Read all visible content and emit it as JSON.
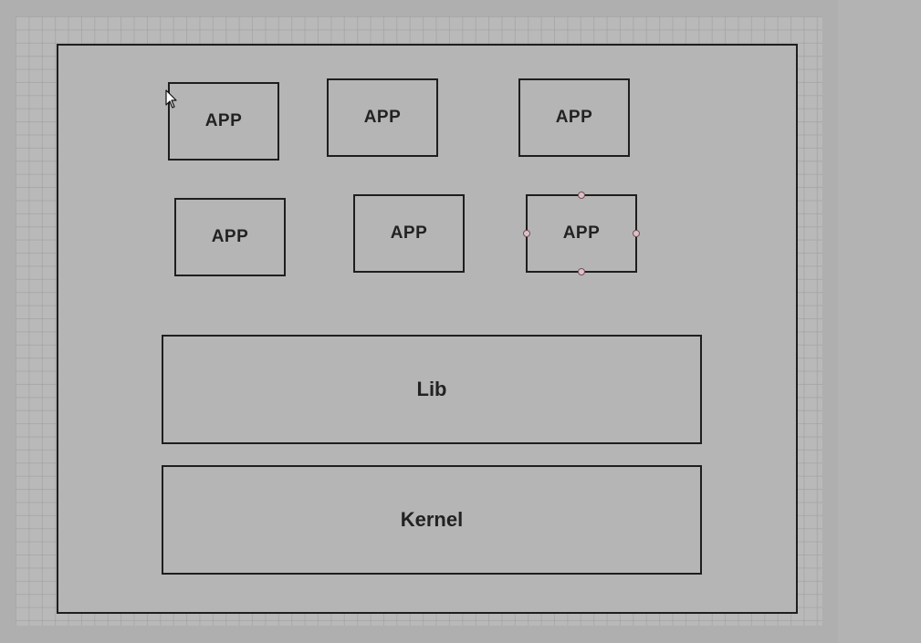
{
  "diagram": {
    "apps": [
      {
        "label": "APP"
      },
      {
        "label": "APP"
      },
      {
        "label": "APP"
      },
      {
        "label": "APP"
      },
      {
        "label": "APP"
      },
      {
        "label": "APP"
      }
    ],
    "lib": {
      "label": "Lib"
    },
    "kernel": {
      "label": "Kernel"
    }
  },
  "selection": {
    "selected_shape": "app-6"
  },
  "icons": {
    "cursor": "mouse-pointer-icon",
    "handle": "resize-handle-icon"
  }
}
